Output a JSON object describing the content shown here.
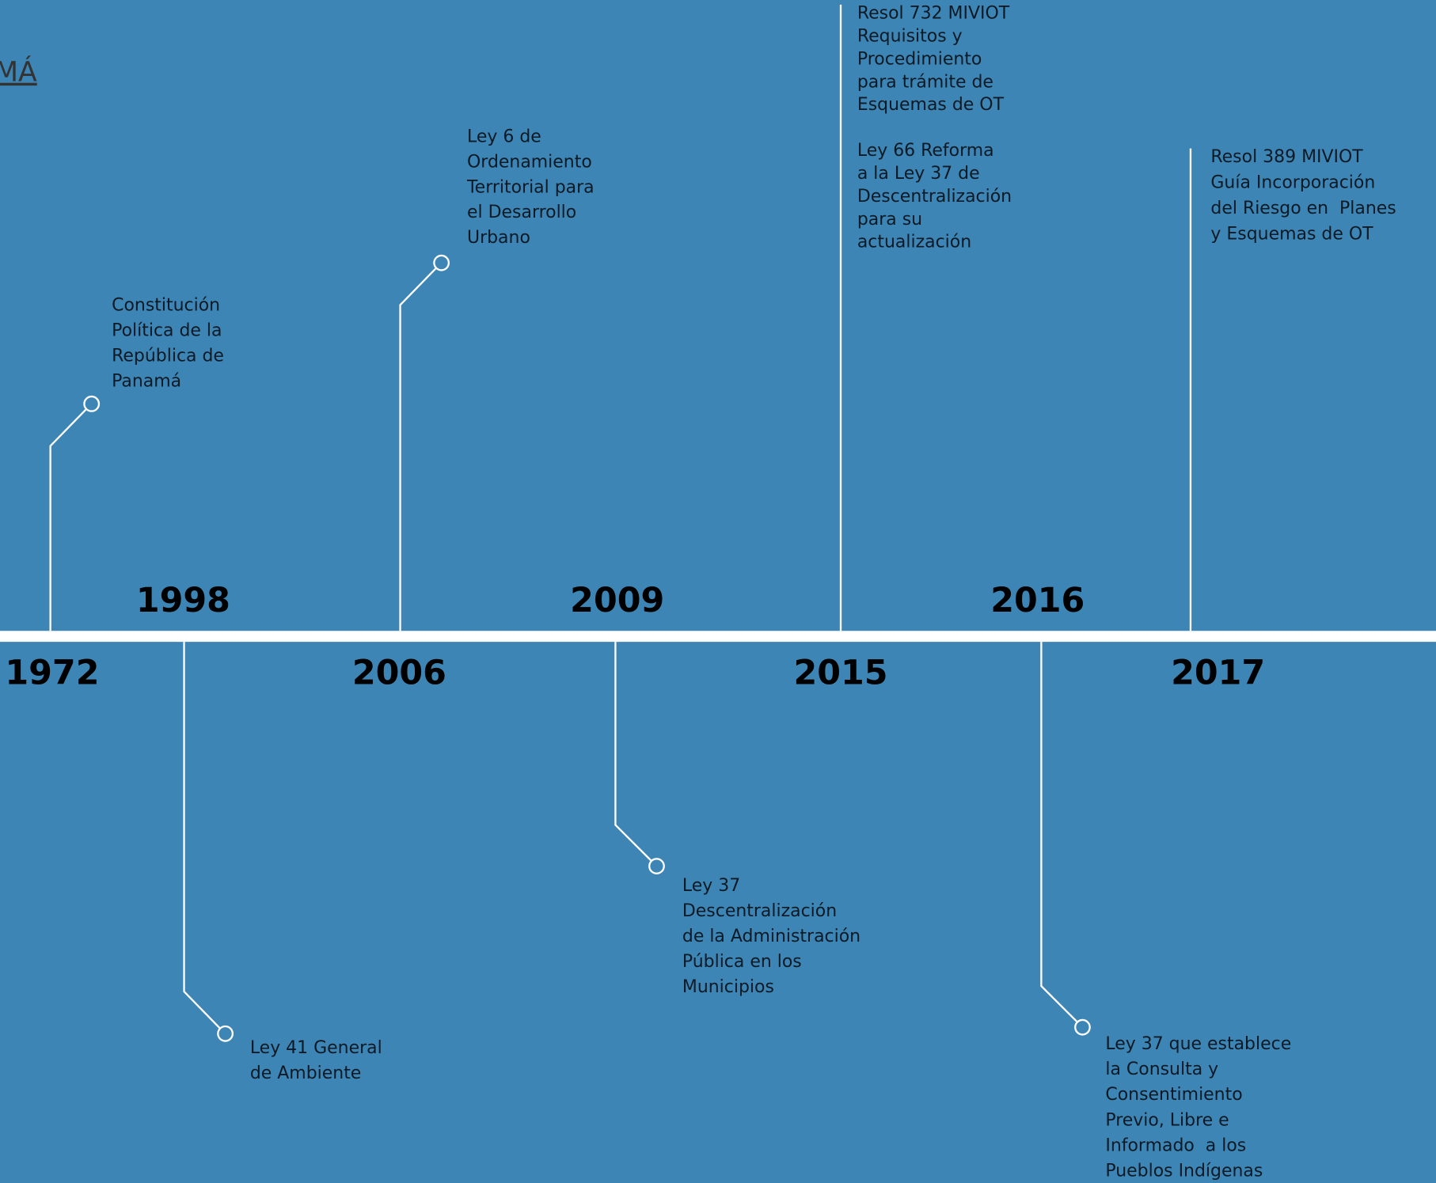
{
  "heading": "MÁ",
  "events": [
    {
      "year": "1972",
      "notes": [
        [
          "Constitución",
          "Política de la",
          "República de",
          "Panamá"
        ]
      ]
    },
    {
      "year": "1998",
      "notes": [
        [
          "Ley 41 General",
          "de Ambiente"
        ]
      ]
    },
    {
      "year": "2006",
      "notes": [
        [
          "Ley 6 de",
          "Ordenamiento",
          "Territorial para",
          "el Desarrollo",
          "Urbano"
        ]
      ]
    },
    {
      "year": "2009",
      "notes": [
        [
          "Ley 37",
          "Descentralización",
          "de la Administración",
          "Pública en los",
          "Municipios"
        ]
      ]
    },
    {
      "year": "2015",
      "notes": [
        [
          "Resol 732 MIVIOT",
          "Requisitos y",
          "Procedimiento",
          "para trámite de",
          "Esquemas de OT"
        ],
        [
          "Ley 66 Reforma",
          "a la Ley 37 de",
          "Descentralización",
          "para su",
          "actualización"
        ]
      ]
    },
    {
      "year": "2016",
      "notes": [
        [
          "Ley 37 que establece",
          "la Consulta y",
          "Consentimiento",
          "Previo, Libre e",
          "Informado  a los",
          "Pueblos Indígenas"
        ]
      ]
    },
    {
      "year": "2017",
      "notes": [
        [
          "Resol 389 MIVIOT",
          "Guía Incorporación",
          "del Riesgo en  Planes",
          "y Esquemas de OT"
        ]
      ]
    }
  ]
}
